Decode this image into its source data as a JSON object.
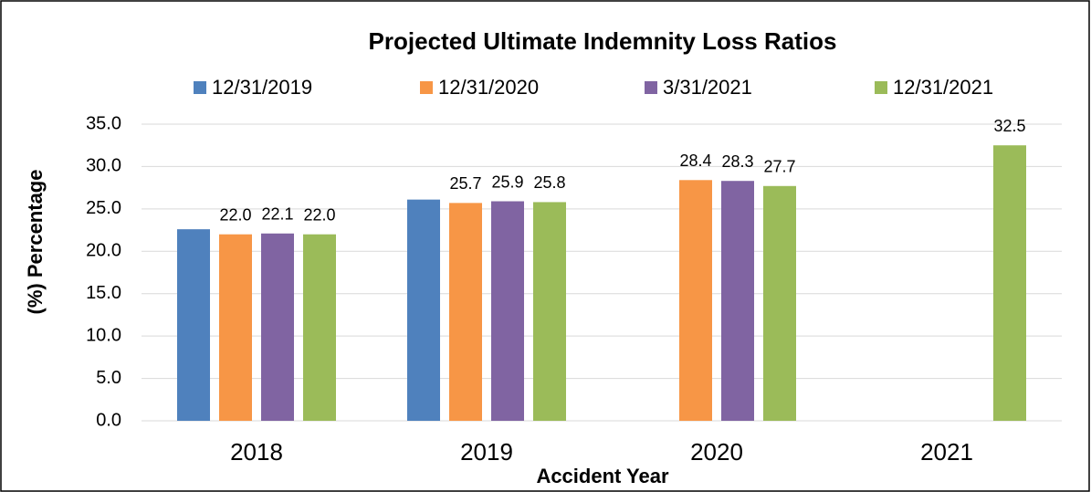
{
  "chart_data": {
    "type": "bar",
    "title": "Projected Ultimate Indemnity Loss Ratios",
    "x_label": "Accident Year",
    "y_label": "(%) Percentage",
    "categories": [
      "2018",
      "2019",
      "2020",
      "2021"
    ],
    "series": [
      {
        "name": "12/31/2019",
        "color": "#4f81bd",
        "values": [
          22.6,
          26.1,
          null,
          null
        ]
      },
      {
        "name": "12/31/2020",
        "color": "#f79646",
        "values": [
          22.0,
          25.7,
          28.4,
          null
        ],
        "value_labels": [
          "22.0",
          "25.7",
          "28.4",
          null
        ]
      },
      {
        "name": "3/31/2021",
        "color": "#8064a2",
        "values": [
          22.1,
          25.9,
          28.3,
          null
        ],
        "value_labels": [
          "22.1",
          "25.9",
          "28.3",
          null
        ]
      },
      {
        "name": "12/31/2021",
        "color": "#9bbb59",
        "values": [
          22.0,
          25.8,
          27.7,
          32.5
        ],
        "value_labels": [
          "22.0",
          "25.8",
          "27.7",
          "32.5"
        ]
      }
    ],
    "ylim": [
      0,
      35
    ],
    "yticks": [
      {
        "value": 0,
        "label": "0.0"
      },
      {
        "value": 5,
        "label": "5.0"
      },
      {
        "value": 10,
        "label": "10.0"
      },
      {
        "value": 15,
        "label": "15.0"
      },
      {
        "value": 20,
        "label": "20.0"
      },
      {
        "value": 25,
        "label": "25.0"
      },
      {
        "value": 30,
        "label": "30.0"
      },
      {
        "value": 35,
        "label": "35.0"
      }
    ],
    "grid": true,
    "legend": "top"
  }
}
